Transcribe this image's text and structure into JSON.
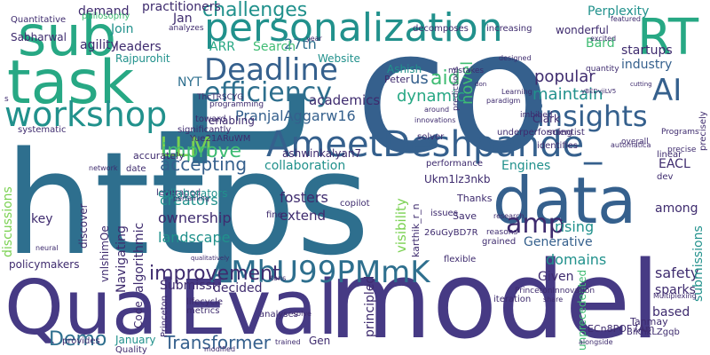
{
  "palette": {
    "purple": "#3e2b6e",
    "indigo": "#463a84",
    "blue": "#35608d",
    "steel": "#2e6f8e",
    "teal": "#21918c",
    "sea": "#27a884",
    "green": "#3fbc73",
    "lime": "#7ad151",
    "yellowgreen": "#a6d93d"
  },
  "words": [
    {
      "text": "t",
      "color": "steel"
    },
    {
      "text": "co",
      "color": "blue"
    },
    {
      "text": "https",
      "color": "steel"
    },
    {
      "text": "model",
      "color": "indigo"
    },
    {
      "text": "QualEval",
      "color": "indigo"
    },
    {
      "text": "task",
      "color": "sea"
    },
    {
      "text": "sub",
      "color": "sea"
    },
    {
      "text": "personalization",
      "color": "teal"
    },
    {
      "text": "RT",
      "color": "sea"
    },
    {
      "text": "AmeetDeshpande_",
      "color": "blue"
    },
    {
      "text": "data",
      "color": "blue"
    },
    {
      "text": "workshop",
      "color": "teal"
    },
    {
      "text": "Deadline",
      "color": "blue"
    },
    {
      "text": "efficiency",
      "color": "steel"
    },
    {
      "text": "insights",
      "color": "blue"
    },
    {
      "text": "AI",
      "color": "blue"
    },
    {
      "text": "AMbU99PMmK",
      "color": "steel"
    },
    {
      "text": "LLM",
      "color": "lime"
    },
    {
      "text": "amp",
      "color": "purple"
    },
    {
      "text": "improvement",
      "color": "purple"
    },
    {
      "text": "challenges",
      "color": "teal"
    },
    {
      "text": "Demo",
      "color": "steel"
    },
    {
      "text": "Transformer",
      "color": "blue"
    },
    {
      "text": "improve",
      "color": "green"
    },
    {
      "text": "accepting",
      "color": "blue"
    },
    {
      "text": "PranjalAggarw16",
      "color": "blue"
    },
    {
      "text": "academics",
      "color": "purple"
    },
    {
      "text": "aid",
      "color": "green"
    },
    {
      "text": "dynamic",
      "color": "sea"
    },
    {
      "text": "us",
      "color": "blue"
    },
    {
      "text": "popular",
      "color": "purple"
    },
    {
      "text": "maintain",
      "color": "teal"
    },
    {
      "text": "novel",
      "color": "green"
    },
    {
      "text": "industry",
      "color": "blue"
    },
    {
      "text": "startups",
      "color": "purple"
    },
    {
      "text": "Perplexity",
      "color": "teal"
    },
    {
      "text": "Bard",
      "color": "green"
    },
    {
      "text": "ARR",
      "color": "sea"
    },
    {
      "text": "27th",
      "color": "steel"
    },
    {
      "text": "Search",
      "color": "green"
    },
    {
      "text": "Jan",
      "color": "purple"
    },
    {
      "text": "Join",
      "color": "teal"
    },
    {
      "text": "leaders",
      "color": "purple"
    },
    {
      "text": "demand",
      "color": "purple"
    },
    {
      "text": "agility",
      "color": "purple"
    },
    {
      "text": "practitioners",
      "color": "purple"
    },
    {
      "text": "Sabharwal",
      "color": "purple"
    },
    {
      "text": "Quantitative",
      "color": "purple"
    },
    {
      "text": "philosophy",
      "color": "green"
    },
    {
      "text": "Rajpurohit",
      "color": "teal"
    },
    {
      "text": "NYT",
      "color": "steel"
    },
    {
      "text": "enabling",
      "color": "purple"
    },
    {
      "text": "Website",
      "color": "teal"
    },
    {
      "text": "Ashish",
      "color": "teal"
    },
    {
      "text": "Peter",
      "color": "purple"
    },
    {
      "text": "Clark",
      "color": "purple"
    },
    {
      "text": "collaboration",
      "color": "teal"
    },
    {
      "text": "fosters",
      "color": "purple"
    },
    {
      "text": "creators",
      "color": "teal"
    },
    {
      "text": "ownership",
      "color": "purple"
    },
    {
      "text": "landscape",
      "color": "teal"
    },
    {
      "text": "extend",
      "color": "purple"
    },
    {
      "text": "Engines",
      "color": "teal"
    },
    {
      "text": "Generative",
      "color": "blue"
    },
    {
      "text": "rising",
      "color": "teal"
    },
    {
      "text": "domains",
      "color": "teal"
    },
    {
      "text": "among",
      "color": "purple"
    },
    {
      "text": "EACL",
      "color": "purple"
    },
    {
      "text": "safety",
      "color": "purple"
    },
    {
      "text": "sparks",
      "color": "purple"
    },
    {
      "text": "based",
      "color": "purple"
    },
    {
      "text": "submissions",
      "color": "teal"
    },
    {
      "text": "Submissi",
      "color": "purple"
    },
    {
      "text": "decided",
      "color": "purple"
    },
    {
      "text": "Given",
      "color": "purple"
    },
    {
      "text": "Code",
      "color": "purple"
    },
    {
      "text": "January",
      "color": "teal"
    },
    {
      "text": "Gen",
      "color": "purple"
    },
    {
      "text": "Ukm1lz3nkb",
      "color": "purple"
    },
    {
      "text": "ashwinkalyan7",
      "color": "purple"
    },
    {
      "text": "Yue21ARuWM",
      "color": "purple"
    },
    {
      "text": "visibility",
      "color": "lime"
    },
    {
      "text": "principled",
      "color": "purple"
    },
    {
      "text": "Navigating",
      "color": "purple"
    },
    {
      "text": "algorithmic",
      "color": "purple"
    },
    {
      "text": "discussions",
      "color": "lime"
    },
    {
      "text": "key",
      "color": "purple"
    },
    {
      "text": "policymakers",
      "color": "purple"
    },
    {
      "text": "ECn8POF7Am",
      "color": "purple"
    },
    {
      "text": "Tanmay",
      "color": "purple"
    },
    {
      "text": "BiKhkLZgqb",
      "color": "purple"
    },
    {
      "text": "unprecedented",
      "color": "green"
    },
    {
      "text": "vnlshimOe",
      "color": "purple"
    },
    {
      "text": "discover",
      "color": "purple"
    },
    {
      "text": "systematic",
      "color": "purple"
    },
    {
      "text": "Thanks",
      "color": "purple"
    },
    {
      "text": "Save",
      "color": "purple"
    },
    {
      "text": "26uGyBD7R",
      "color": "purple"
    },
    {
      "text": "leveraged",
      "color": "purple"
    },
    {
      "text": "accurately",
      "color": "purple"
    },
    {
      "text": "significantly",
      "color": "purple"
    },
    {
      "text": "date",
      "color": "purple"
    },
    {
      "text": "performance",
      "color": "purple"
    },
    {
      "text": "identifies",
      "color": "purple"
    },
    {
      "text": "issues",
      "color": "purple"
    },
    {
      "text": "scientist",
      "color": "purple"
    },
    {
      "text": "underperforming",
      "color": "purple"
    },
    {
      "text": "imbibed",
      "color": "purple"
    },
    {
      "text": "quantity",
      "color": "purple"
    },
    {
      "text": "lifecycle",
      "color": "purple"
    },
    {
      "text": "metrics",
      "color": "purple"
    },
    {
      "text": "analyses",
      "color": "purple"
    },
    {
      "text": "collaborators",
      "color": "teal"
    },
    {
      "text": "karthik_r_n",
      "color": "purple"
    },
    {
      "text": "grained",
      "color": "purple"
    },
    {
      "text": "fine",
      "color": "purple"
    },
    {
      "text": "provides",
      "color": "purple"
    },
    {
      "text": "flexible",
      "color": "purple"
    },
    {
      "text": "iteration",
      "color": "purple"
    },
    {
      "text": "Multiplexing",
      "color": "purple"
    },
    {
      "text": "precisely",
      "color": "purple"
    },
    {
      "text": "copilot",
      "color": "purple"
    },
    {
      "text": "dev",
      "color": "purple"
    },
    {
      "text": "toward",
      "color": "purple"
    },
    {
      "text": "linear",
      "color": "purple"
    },
    {
      "text": "precise",
      "color": "purple"
    },
    {
      "text": "Programs",
      "color": "purple"
    },
    {
      "text": "research",
      "color": "purple"
    },
    {
      "text": "reasons",
      "color": "purple"
    },
    {
      "text": "solver",
      "color": "purple"
    },
    {
      "text": "excited",
      "color": "purple"
    },
    {
      "text": "wonderful",
      "color": "purple"
    },
    {
      "text": "increasing",
      "color": "purple"
    },
    {
      "text": "decomposes",
      "color": "purple"
    },
    {
      "text": "featured",
      "color": "purple"
    },
    {
      "text": "mistakes",
      "color": "purple"
    },
    {
      "text": "predictions",
      "color": "purple"
    },
    {
      "text": "paradigm",
      "color": "purple"
    },
    {
      "text": "designed",
      "color": "purple"
    },
    {
      "text": "analyzes",
      "color": "purple"
    },
    {
      "text": "year",
      "color": "purple"
    },
    {
      "text": "programming",
      "color": "purple"
    },
    {
      "text": "Learning",
      "color": "purple"
    },
    {
      "text": "innovations",
      "color": "purple"
    },
    {
      "text": "around",
      "color": "purple"
    },
    {
      "text": "cutting",
      "color": "purple"
    },
    {
      "text": "overall",
      "color": "purple"
    },
    {
      "text": "automatica",
      "color": "purple"
    },
    {
      "text": "network",
      "color": "purple"
    },
    {
      "text": "tons",
      "color": "purple"
    },
    {
      "text": "modified",
      "color": "purple"
    },
    {
      "text": "trained",
      "color": "purple"
    },
    {
      "text": "solve",
      "color": "purple"
    },
    {
      "text": "share",
      "color": "purple"
    },
    {
      "text": "alongside",
      "color": "purple"
    },
    {
      "text": "Princeton",
      "color": "purple"
    },
    {
      "text": "Quality",
      "color": "purple"
    },
    {
      "text": "qualitatively",
      "color": "purple"
    },
    {
      "text": "neural",
      "color": "purple"
    },
    {
      "text": "pertaining",
      "color": "purple"
    },
    {
      "text": "PrincetonInnovation",
      "color": "purple"
    },
    {
      "text": "don",
      "color": "purple"
    },
    {
      "text": "yBEDvjiLV5",
      "color": "purple"
    },
    {
      "text": "ThcTRSCYG",
      "color": "purple"
    },
    {
      "text": "s",
      "color": "purple"
    },
    {
      "text": "daviddohan",
      "color": "purple"
    }
  ]
}
